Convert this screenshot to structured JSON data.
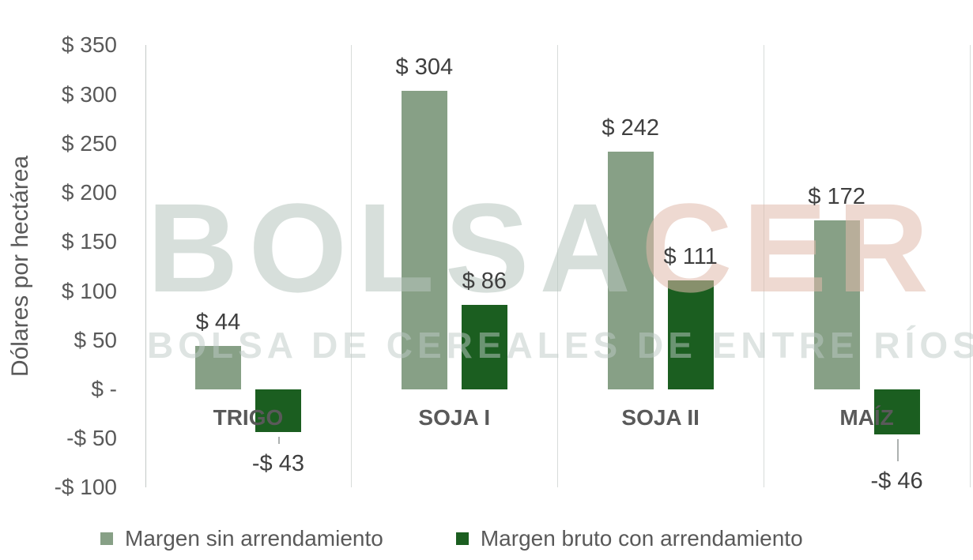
{
  "chart_data": {
    "type": "bar",
    "title": "",
    "ylabel": "Dólares por hectárea",
    "xlabel": "",
    "ylim": [
      -100,
      350
    ],
    "ytick_interval": 50,
    "grid": "vertical category separators only",
    "legend_position": "bottom",
    "background": "#FFFFFF",
    "yticks": [
      {
        "value": 350,
        "label": "$ 350"
      },
      {
        "value": 300,
        "label": "$ 300"
      },
      {
        "value": 250,
        "label": "$ 250"
      },
      {
        "value": 200,
        "label": "$ 200"
      },
      {
        "value": 150,
        "label": "$ 150"
      },
      {
        "value": 100,
        "label": "$ 100"
      },
      {
        "value": 50,
        "label": "$ 50"
      },
      {
        "value": 0,
        "label": "$ -"
      },
      {
        "value": -50,
        "label": "-$ 50"
      },
      {
        "value": -100,
        "label": "-$ 100"
      }
    ],
    "categories": [
      "TRIGO",
      "SOJA I",
      "SOJA II",
      "MAÍZ"
    ],
    "series": [
      {
        "name": "Margen sin arrendamiento",
        "color": "#87A086",
        "values": [
          44,
          304,
          242,
          172
        ],
        "labels": [
          "$ 44",
          "$ 304",
          "$ 242",
          "$ 172"
        ]
      },
      {
        "name": "Margen bruto con arrendamiento",
        "color": "#1B5E20",
        "values": [
          -43,
          86,
          111,
          -46
        ],
        "labels": [
          "-$ 43",
          "$ 86",
          "$ 111",
          "-$ 46"
        ]
      }
    ]
  },
  "watermark": {
    "brand_primary": "BOLSA",
    "brand_accent": "CER",
    "brand_primary_color": "#DCE3DF",
    "brand_accent_color": "#EDD9D2",
    "subtitle": "BOLSA DE CEREALES DE ENTRE RÍOS",
    "subtitle_color": "#E0E7E3"
  }
}
